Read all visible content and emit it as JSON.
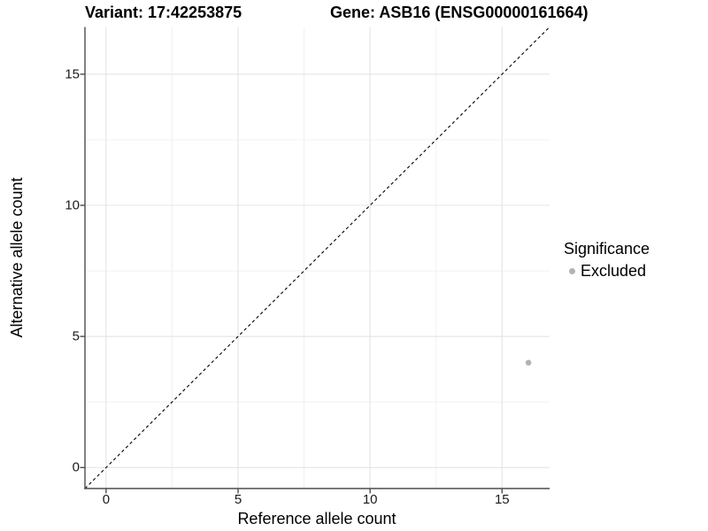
{
  "header": {
    "variant_title": "Variant: 17:42253875",
    "gene_title": "Gene: ASB16 (ENSG00000161664)"
  },
  "chart_data": {
    "type": "scatter",
    "titles": [
      "Variant: 17:42253875",
      "Gene: ASB16 (ENSG00000161664)"
    ],
    "xlabel": "Reference allele count",
    "ylabel": "Alternative allele count",
    "xlim": [
      -0.8,
      16.8
    ],
    "ylim": [
      -0.8,
      16.8
    ],
    "x_ticks": [
      0,
      5,
      10,
      15
    ],
    "y_ticks": [
      0,
      5,
      10,
      15
    ],
    "x_minor_ticks": [
      2.5,
      7.5,
      12.5
    ],
    "y_minor_ticks": [
      2.5,
      7.5,
      12.5
    ],
    "grid": true,
    "reference_line": {
      "type": "identity",
      "slope": 1,
      "intercept": 0,
      "style": "dashed",
      "color": "#000000"
    },
    "series": [
      {
        "name": "Excluded",
        "color": "#b3b3b3",
        "points": [
          {
            "x": 16,
            "y": 4
          }
        ]
      }
    ],
    "legend": {
      "title": "Significance",
      "position": "right",
      "items": [
        {
          "label": "Excluded",
          "color": "#b3b3b3"
        }
      ]
    },
    "colors": {
      "axis_line": "#4d4d4d",
      "grid_major": "#e4e4e4",
      "grid_minor": "#efefef",
      "point": "#b3b3b3"
    }
  }
}
